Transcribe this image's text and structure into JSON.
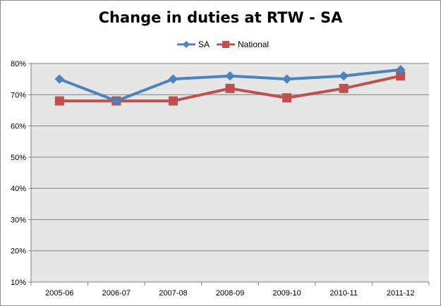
{
  "chart_data": {
    "type": "line",
    "title": "Change in duties at RTW - SA",
    "xlabel": "",
    "ylabel": "",
    "categories": [
      "2005-06",
      "2006-07",
      "2007-08",
      "2008-09",
      "2009-10",
      "2010-11",
      "2011-12"
    ],
    "series": [
      {
        "name": "SA",
        "values": [
          75,
          68,
          75,
          76,
          75,
          76,
          78
        ],
        "color": "#4f81bd",
        "marker": "diamond"
      },
      {
        "name": "National",
        "values": [
          68,
          68,
          68,
          72,
          69,
          72,
          76
        ],
        "color": "#c0504d",
        "marker": "square"
      }
    ],
    "ylim": [
      10,
      80
    ],
    "yticks": [
      10,
      20,
      30,
      40,
      50,
      60,
      70,
      80
    ],
    "ytick_labels": [
      "10%",
      "20%",
      "30%",
      "40%",
      "50%",
      "60%",
      "70%",
      "80%"
    ],
    "grid": true,
    "legend": "top-center",
    "plot_background": "#e6e6e6"
  }
}
